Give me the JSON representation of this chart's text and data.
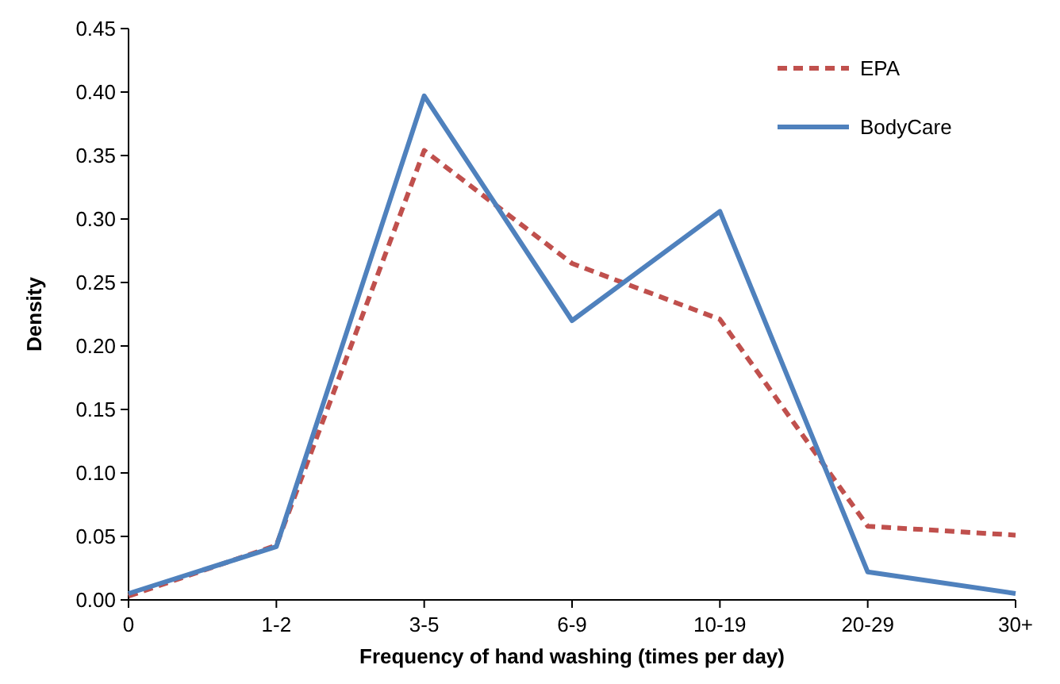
{
  "chart_data": {
    "type": "line",
    "xlabel": "Frequency of hand washing (times per day)",
    "ylabel": "Density",
    "categories": [
      "0",
      "1-2",
      "3-5",
      "6-9",
      "10-19",
      "20-29",
      "30+"
    ],
    "series": [
      {
        "name": "EPA",
        "color": "#c0504d",
        "line_style": "dashed",
        "values": [
          0.003,
          0.043,
          0.354,
          0.265,
          0.221,
          0.058,
          0.051
        ]
      },
      {
        "name": "BodyCare",
        "color": "#4f81bd",
        "line_style": "solid",
        "values": [
          0.005,
          0.042,
          0.397,
          0.22,
          0.306,
          0.022,
          0.005
        ]
      }
    ],
    "ylim": [
      0,
      0.45
    ],
    "yticks": [
      {
        "value": 0,
        "label": "0.00"
      },
      {
        "value": 0.05,
        "label": "0.05"
      },
      {
        "value": 0.1,
        "label": "0.10"
      },
      {
        "value": 0.15,
        "label": "0.15"
      },
      {
        "value": 0.2,
        "label": "0.20"
      },
      {
        "value": 0.25,
        "label": "0.25"
      },
      {
        "value": 0.3,
        "label": "0.30"
      },
      {
        "value": 0.35,
        "label": "0.35"
      },
      {
        "value": 0.4,
        "label": "0.40"
      },
      {
        "value": 0.45,
        "label": "0.45"
      }
    ],
    "grid": false,
    "legend": "top right",
    "marker": "none"
  }
}
